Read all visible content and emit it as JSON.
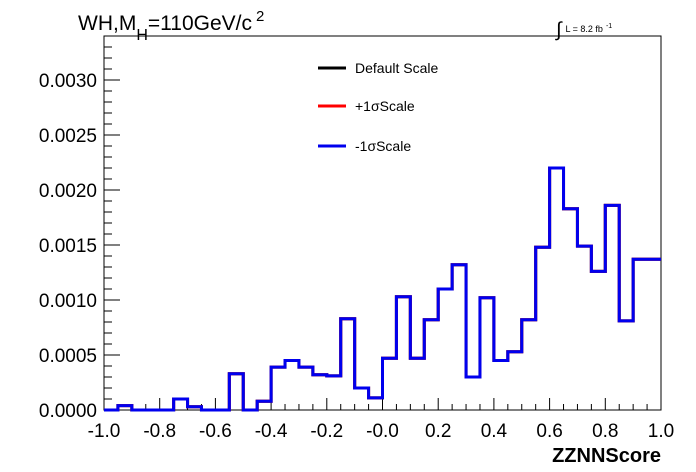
{
  "chart_data": {
    "type": "line",
    "title": {
      "prefix": "WH,M",
      "subscript": "H",
      "value": "=110GeV/c",
      "superscript": "2"
    },
    "annotation": {
      "integral": "∫",
      "text": "L = 8.2 fb",
      "superscript": "-1"
    },
    "xlabel": "ZZNNScore",
    "ylabel": "",
    "xlim": [
      -1.0,
      1.0
    ],
    "ylim": [
      0.0,
      0.0034
    ],
    "x_ticks": [
      "-1.0",
      "-0.8",
      "-0.6",
      "-0.4",
      "-0.2",
      "-0.0",
      "0.2",
      "0.4",
      "0.6",
      "0.8",
      "1.0"
    ],
    "y_ticks": [
      "0.0000",
      "0.0005",
      "0.0010",
      "0.0015",
      "0.0020",
      "0.0025",
      "0.0030"
    ],
    "legend_position": "top-center",
    "grid": false,
    "bin_edges": [
      -1.0,
      -0.95,
      -0.9,
      -0.85,
      -0.8,
      -0.75,
      -0.7,
      -0.65,
      -0.6,
      -0.55,
      -0.5,
      -0.45,
      -0.4,
      -0.35,
      -0.3,
      -0.25,
      -0.2,
      -0.15,
      -0.1,
      -0.05,
      0.0,
      0.05,
      0.1,
      0.15,
      0.2,
      0.25,
      0.3,
      0.35,
      0.4,
      0.45,
      0.5,
      0.55,
      0.6,
      0.65,
      0.7,
      0.75,
      0.8,
      0.85,
      0.9,
      0.95,
      1.0
    ],
    "series": [
      {
        "name": "Default Scale",
        "color": "#000000",
        "values": [
          0.0,
          4e-05,
          0.0,
          0.0,
          0.0,
          0.0001,
          3e-05,
          0.0,
          0.0,
          0.00033,
          0.0,
          8e-05,
          0.00039,
          0.00045,
          0.00039,
          0.00032,
          0.00031,
          0.00083,
          0.0002,
          0.00011,
          0.00047,
          0.00103,
          0.00047,
          0.00082,
          0.0011,
          0.00132,
          0.0003,
          0.00102,
          0.00045,
          0.00053,
          0.00082,
          0.00148,
          0.0022,
          0.00183,
          0.00149,
          0.00126,
          0.00186,
          0.00081,
          0.00137,
          0.00137
        ]
      },
      {
        "name": "+1σScale",
        "color": "#ff0000",
        "values": [
          0.0,
          4e-05,
          0.0,
          0.0,
          0.0,
          0.0001,
          3e-05,
          0.0,
          0.0,
          0.00033,
          0.0,
          8e-05,
          0.00039,
          0.00045,
          0.00039,
          0.00032,
          0.00031,
          0.00083,
          0.0002,
          0.00011,
          0.00047,
          0.00103,
          0.00047,
          0.00082,
          0.0011,
          0.00132,
          0.0003,
          0.00102,
          0.00045,
          0.00053,
          0.00082,
          0.00148,
          0.0022,
          0.00183,
          0.00149,
          0.00126,
          0.00186,
          0.00081,
          0.00137,
          0.00137
        ]
      },
      {
        "name": "-1σScale",
        "color": "#0000ee",
        "values": [
          0.0,
          4e-05,
          0.0,
          0.0,
          0.0,
          0.0001,
          3e-05,
          0.0,
          0.0,
          0.00033,
          0.0,
          8e-05,
          0.00039,
          0.00045,
          0.00039,
          0.00032,
          0.00031,
          0.00083,
          0.0002,
          0.00011,
          0.00047,
          0.00103,
          0.00047,
          0.00082,
          0.0011,
          0.00132,
          0.0003,
          0.00102,
          0.00045,
          0.00053,
          0.00082,
          0.00148,
          0.0022,
          0.00183,
          0.00149,
          0.00126,
          0.00186,
          0.00081,
          0.00137,
          0.00137
        ]
      }
    ]
  }
}
